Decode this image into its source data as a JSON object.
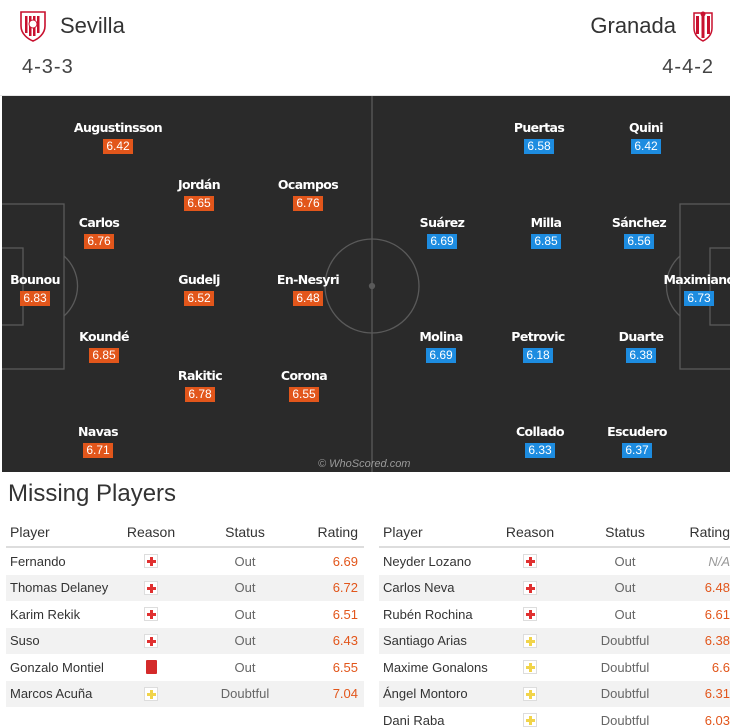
{
  "home": {
    "name": "Sevilla",
    "formation": "4-3-3",
    "color": "#e2561b",
    "players": [
      {
        "name": "Augustinsson",
        "rating": "6.42"
      },
      {
        "name": "Jordán",
        "rating": "6.65"
      },
      {
        "name": "Ocampos",
        "rating": "6.76"
      },
      {
        "name": "Carlos",
        "rating": "6.76"
      },
      {
        "name": "Bounou",
        "rating": "6.83"
      },
      {
        "name": "Gudelj",
        "rating": "6.52"
      },
      {
        "name": "En-Nesyri",
        "rating": "6.48"
      },
      {
        "name": "Koundé",
        "rating": "6.85"
      },
      {
        "name": "Rakitic",
        "rating": "6.78"
      },
      {
        "name": "Corona",
        "rating": "6.55"
      },
      {
        "name": "Navas",
        "rating": "6.71"
      }
    ]
  },
  "away": {
    "name": "Granada",
    "formation": "4-4-2",
    "color": "#1d8ce0",
    "players": [
      {
        "name": "Puertas",
        "rating": "6.58"
      },
      {
        "name": "Quini",
        "rating": "6.42"
      },
      {
        "name": "Suárez",
        "rating": "6.69"
      },
      {
        "name": "Milla",
        "rating": "6.85"
      },
      {
        "name": "Sánchez",
        "rating": "6.56"
      },
      {
        "name": "Maximiano",
        "rating": "6.73"
      },
      {
        "name": "Molina",
        "rating": "6.69"
      },
      {
        "name": "Petrovic",
        "rating": "6.18"
      },
      {
        "name": "Duarte",
        "rating": "6.38"
      },
      {
        "name": "Collado",
        "rating": "6.33"
      },
      {
        "name": "Escudero",
        "rating": "6.37"
      }
    ]
  },
  "watermark": "© WhoScored.com",
  "missing": {
    "title": "Missing Players",
    "headers": {
      "player": "Player",
      "reason": "Reason",
      "status": "Status",
      "rating": "Rating"
    },
    "home": [
      {
        "player": "Fernando",
        "reason": "injury-icon",
        "status": "Out",
        "rating": "6.69"
      },
      {
        "player": "Thomas Delaney",
        "reason": "injury-icon",
        "status": "Out",
        "rating": "6.72"
      },
      {
        "player": "Karim Rekik",
        "reason": "injury-icon",
        "status": "Out",
        "rating": "6.51"
      },
      {
        "player": "Suso",
        "reason": "injury-icon",
        "status": "Out",
        "rating": "6.43"
      },
      {
        "player": "Gonzalo Montiel",
        "reason": "red-card-icon",
        "status": "Out",
        "rating": "6.55"
      },
      {
        "player": "Marcos Acuña",
        "reason": "doubtful-icon",
        "status": "Doubtful",
        "rating": "7.04"
      }
    ],
    "away": [
      {
        "player": "Neyder Lozano",
        "reason": "injury-icon",
        "status": "Out",
        "rating": "N/A"
      },
      {
        "player": "Carlos Neva",
        "reason": "injury-icon",
        "status": "Out",
        "rating": "6.48"
      },
      {
        "player": "Rubén Rochina",
        "reason": "injury-icon",
        "status": "Out",
        "rating": "6.61"
      },
      {
        "player": "Santiago Arias",
        "reason": "doubtful-icon",
        "status": "Doubtful",
        "rating": "6.38"
      },
      {
        "player": "Maxime Gonalons",
        "reason": "doubtful-icon",
        "status": "Doubtful",
        "rating": "6.6"
      },
      {
        "player": "Ángel Montoro",
        "reason": "doubtful-icon",
        "status": "Doubtful",
        "rating": "6.31"
      },
      {
        "player": "Dani Raba",
        "reason": "doubtful-icon",
        "status": "Doubtful",
        "rating": "6.03"
      }
    ]
  }
}
